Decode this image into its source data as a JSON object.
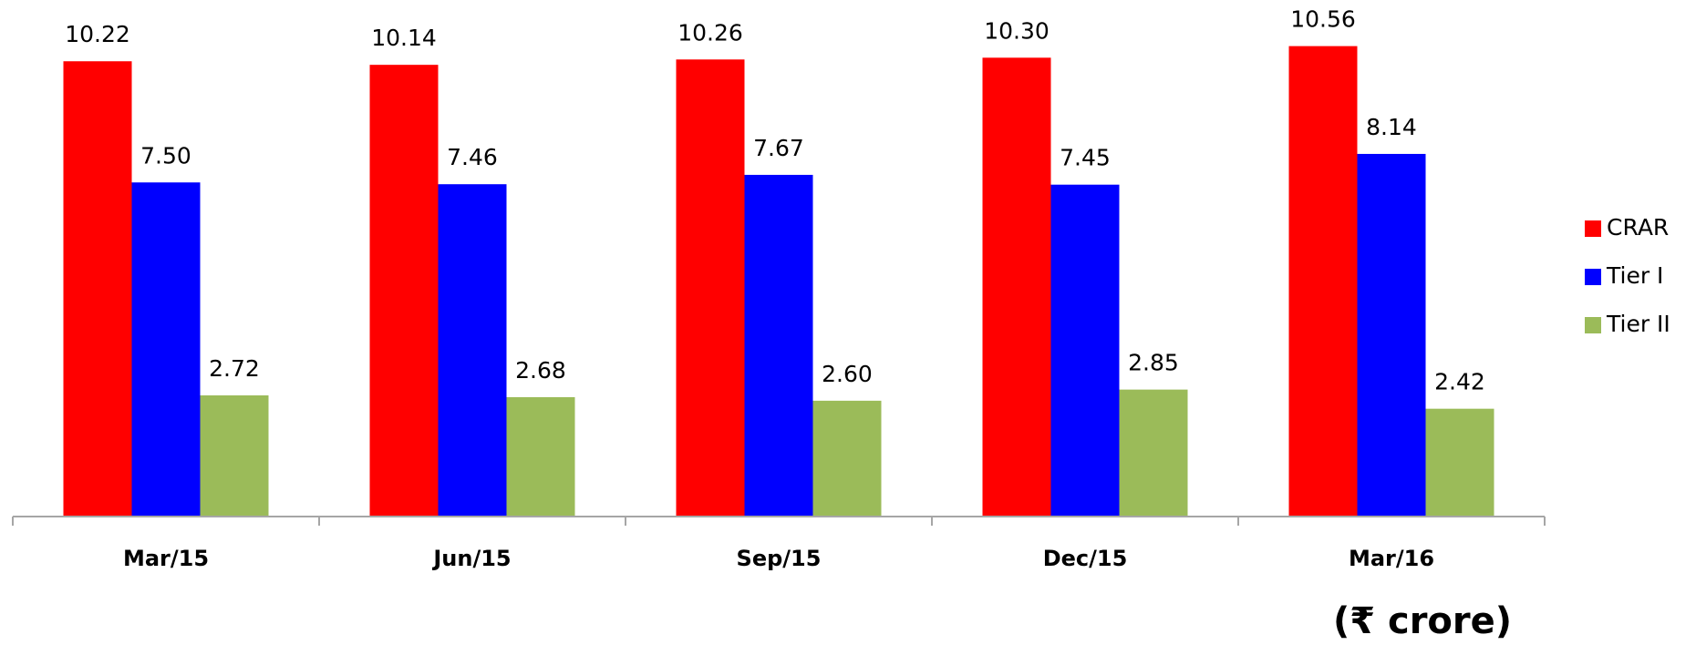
{
  "chart_data": {
    "type": "bar",
    "categories": [
      "Mar/15",
      "Jun/15",
      "Sep/15",
      "Dec/15",
      "Mar/16"
    ],
    "series": [
      {
        "name": "CRAR",
        "color": "#ff0000",
        "values": [
          10.22,
          10.14,
          10.26,
          10.3,
          10.56
        ],
        "value_labels": [
          "10.22",
          "10.14",
          "10.26",
          "10.30",
          "10.56"
        ]
      },
      {
        "name": "Tier I",
        "color": "#0000ff",
        "values": [
          7.5,
          7.46,
          7.67,
          7.45,
          8.14
        ],
        "value_labels": [
          "7.50",
          "7.46",
          "7.67",
          "7.45",
          "8.14"
        ]
      },
      {
        "name": "Tier II",
        "color": "#9bbb59",
        "values": [
          2.72,
          2.68,
          2.6,
          2.85,
          2.42
        ],
        "value_labels": [
          "2.72",
          "2.68",
          "2.60",
          "2.85",
          "2.42"
        ]
      }
    ],
    "annotation": "(₹ crore)",
    "legend": "right"
  }
}
